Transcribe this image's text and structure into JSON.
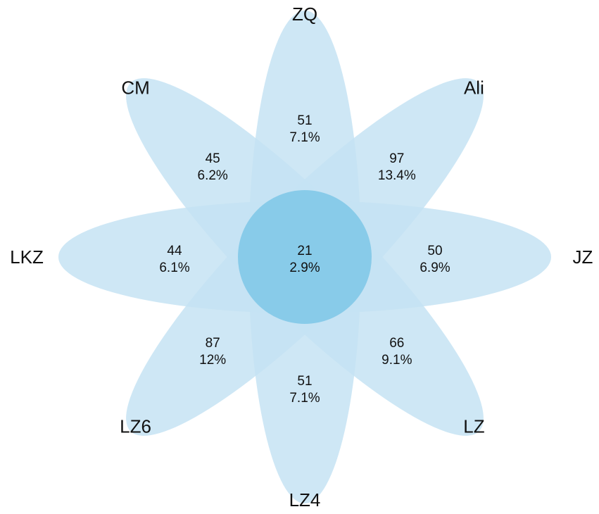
{
  "diagram": {
    "type": "flower_venn",
    "colors": {
      "petal": "#c5e3f3",
      "core": "#88cbe9",
      "text": "#111111"
    },
    "core": {
      "count": "21",
      "percent": "2.9%"
    },
    "petals": [
      {
        "set": "ZQ",
        "count": "51",
        "percent": "7.1%"
      },
      {
        "set": "Ali",
        "count": "97",
        "percent": "13.4%"
      },
      {
        "set": "JZ",
        "count": "50",
        "percent": "6.9%"
      },
      {
        "set": "LZ",
        "count": "66",
        "percent": "9.1%"
      },
      {
        "set": "LZ4",
        "count": "51",
        "percent": "7.1%"
      },
      {
        "set": "LZ6",
        "count": "87",
        "percent": "12%"
      },
      {
        "set": "LKZ",
        "count": "44",
        "percent": "6.1%"
      },
      {
        "set": "CM",
        "count": "45",
        "percent": "6.2%"
      }
    ]
  }
}
